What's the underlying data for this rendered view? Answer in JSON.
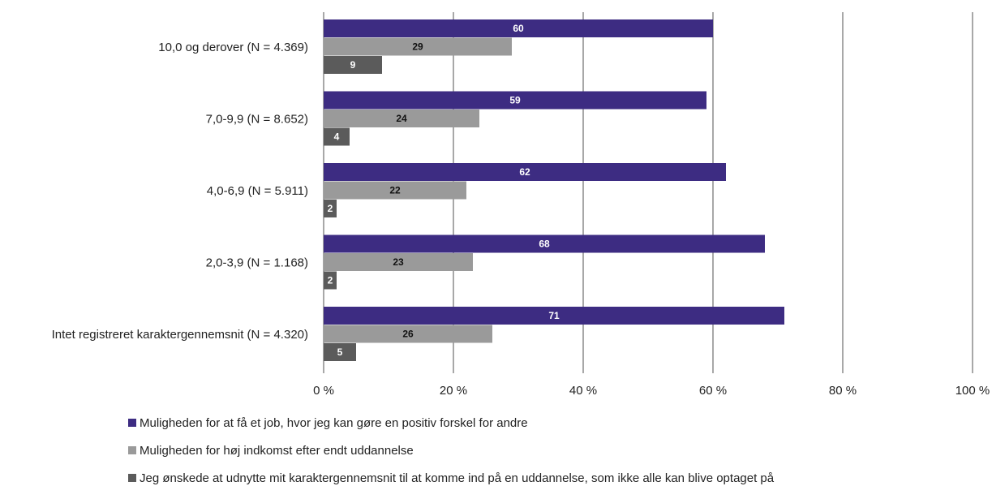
{
  "chart_data": {
    "type": "bar",
    "orientation": "horizontal",
    "categories": [
      "10,0 og derover (N = 4.369)",
      "7,0-9,9 (N = 8.652)",
      "4,0-6,9 (N = 5.911)",
      "2,0-3,9 (N = 1.168)",
      "Intet registreret karaktergennemsnit (N = 4.320)"
    ],
    "series": [
      {
        "name": "Muligheden for at få et job, hvor jeg kan gøre en positiv forskel for andre",
        "color": "#3d2c82",
        "label_color": "#ffffff",
        "values": [
          60,
          59,
          62,
          68,
          71
        ]
      },
      {
        "name": "Muligheden for høj indkomst efter endt uddannelse",
        "color": "#9a9a9a",
        "label_color": "#111111",
        "values": [
          29,
          24,
          22,
          23,
          26
        ]
      },
      {
        "name": "Jeg ønskede at udnytte mit karaktergennemsnit til at komme ind på en uddannelse, som ikke alle kan blive optaget på",
        "color": "#5b5b5b",
        "label_color": "#ffffff",
        "values": [
          9,
          4,
          2,
          2,
          5
        ]
      }
    ],
    "xlim": [
      0,
      100
    ],
    "xticks": [
      0,
      20,
      40,
      60,
      80,
      100
    ],
    "xtick_labels": [
      "0 %",
      "20 %",
      "40 %",
      "60 %",
      "80 %",
      "100 %"
    ],
    "grid": true,
    "legend_position": "bottom-left"
  }
}
